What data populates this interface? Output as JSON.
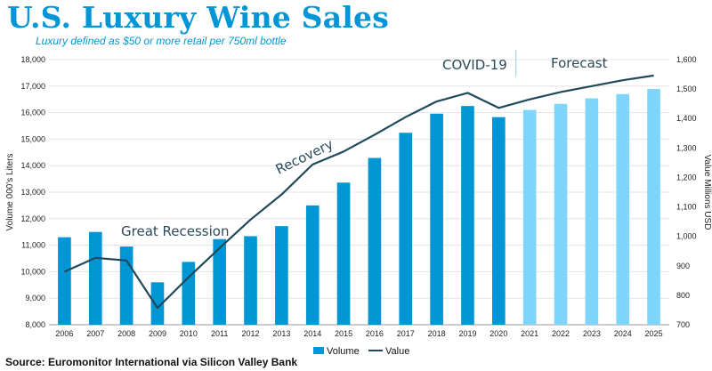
{
  "title": "U.S. Luxury Wine Sales",
  "subtitle": "Luxury defined as $50 or more retail per 750ml bottle",
  "source": "Source: Euromonitor International via Silicon Valley Bank",
  "colors": {
    "actual_bar": "#0096d6",
    "forecast_bar": "#7fd4fa",
    "line": "#1f4a5c",
    "title": "#0096d6"
  },
  "chart_data": {
    "type": "bar",
    "categories": [
      "2006",
      "2007",
      "2008",
      "2009",
      "2010",
      "2011",
      "2012",
      "2013",
      "2014",
      "2015",
      "2016",
      "2017",
      "2018",
      "2019",
      "2020",
      "2021",
      "2022",
      "2023",
      "2024",
      "2025"
    ],
    "forecast_from": "2021",
    "series": [
      {
        "name": "Volume",
        "type": "bar",
        "axis": "left",
        "values": [
          11300,
          11500,
          10950,
          9600,
          10370,
          11230,
          11340,
          11720,
          12500,
          13360,
          14290,
          15240,
          15960,
          16250,
          15830,
          16100,
          16330,
          16540,
          16700,
          16890
        ]
      },
      {
        "name": "Value",
        "type": "line",
        "axis": "right",
        "values": [
          880,
          927,
          918,
          757,
          861,
          960,
          1057,
          1142,
          1244,
          1288,
          1345,
          1405,
          1458,
          1487,
          1436,
          1465,
          1490,
          1510,
          1530,
          1546
        ]
      }
    ],
    "ylabel_left": "Volume 000's Liters",
    "ylabel_right": "Value Millions USD",
    "ylim_left": [
      8000,
      18000
    ],
    "yticks_left": [
      "8,000",
      "9,000",
      "10,000",
      "11,000",
      "12,000",
      "13,000",
      "14,000",
      "15,000",
      "16,000",
      "17,000",
      "18,000"
    ],
    "ylim_right": [
      700,
      1600
    ],
    "yticks_right": [
      "700",
      "800",
      "900",
      "1,000",
      "1,100",
      "1,200",
      "1,300",
      "1,400",
      "1,500",
      "1,600"
    ],
    "grid": true,
    "legend_position": "bottom",
    "annotations": [
      "Great Recession",
      "Recovery",
      "COVID-19",
      "Forecast"
    ]
  }
}
